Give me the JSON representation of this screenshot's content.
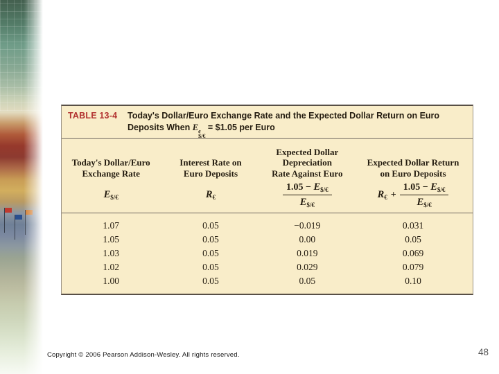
{
  "colors": {
    "table_background": "#f9edc9",
    "table_label_red": "#b23230",
    "table_text": "#241c10",
    "rule_dark": "#584f46"
  },
  "table": {
    "label": "TABLE 13-4",
    "title_before": "Today's Dollar/Euro Exchange Rate and the Expected Dollar Return on Euro Deposits When",
    "title_formula": {
      "letter": "E",
      "sup": "e",
      "sub": "$/€"
    },
    "title_after": "=  $1.05 per Euro",
    "columns": [
      {
        "header_lines": [
          "Today's Dollar/Euro",
          "Exchange Rate"
        ]
      },
      {
        "header_lines": [
          "Interest Rate on",
          "Euro Deposits"
        ]
      },
      {
        "header_lines": [
          "Expected Dollar",
          "Depreciation",
          "Rate Against Euro"
        ]
      },
      {
        "header_lines": [
          "Expected Dollar Return",
          "on Euro Deposits"
        ]
      }
    ],
    "symbols": {
      "exchange_letter": "E",
      "exchange_sub": "$/€",
      "interest_letter": "R",
      "interest_sub": "€",
      "fraction_constant": "1.05",
      "minus": "−",
      "plus": "+"
    },
    "rows": [
      [
        "1.07",
        "0.05",
        "−0.019",
        "0.031"
      ],
      [
        "1.05",
        "0.05",
        "0.00",
        "0.05"
      ],
      [
        "1.03",
        "0.05",
        "0.019",
        "0.069"
      ],
      [
        "1.02",
        "0.05",
        "0.029",
        "0.079"
      ],
      [
        "1.00",
        "0.05",
        "0.05",
        "0.10"
      ]
    ]
  },
  "footer": {
    "copyright": "Copyright © 2006 Pearson Addison-Wesley. All rights reserved.",
    "page_number": "48"
  }
}
